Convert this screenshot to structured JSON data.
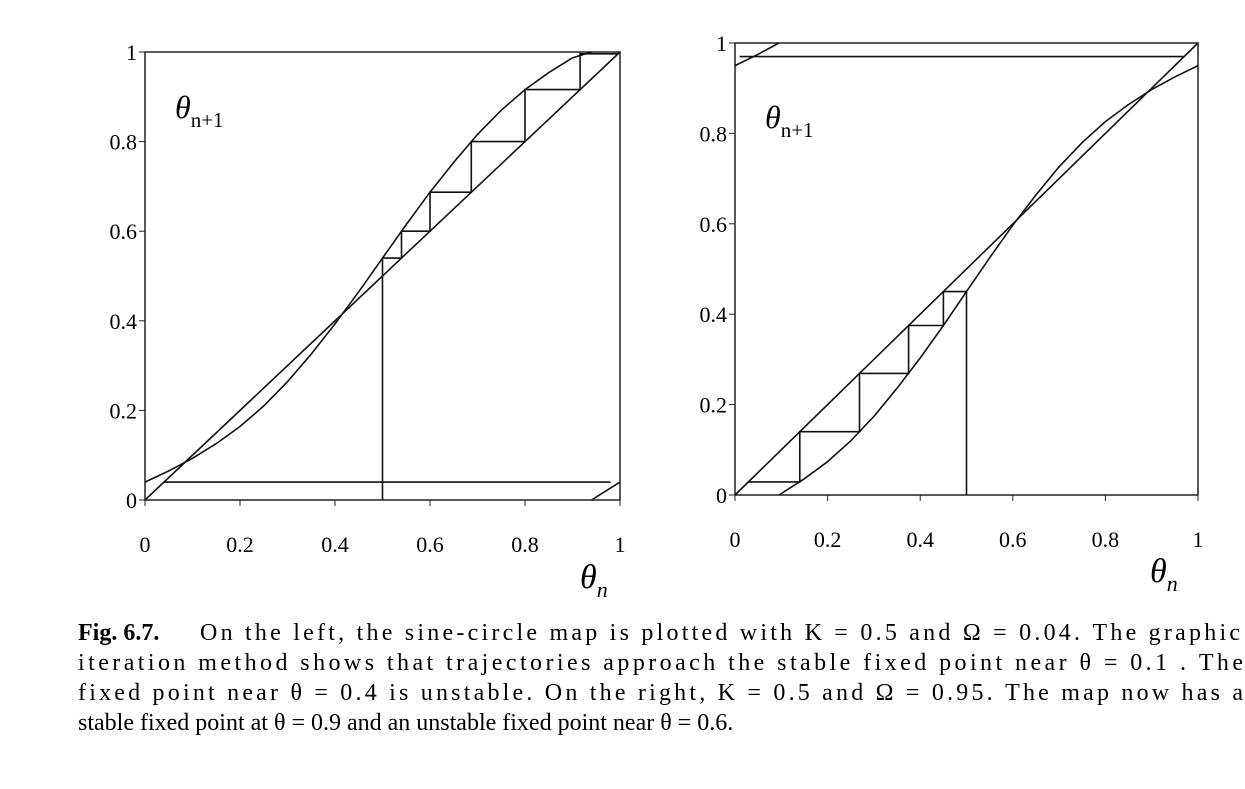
{
  "chart_data": [
    {
      "type": "line",
      "xlim": [
        0,
        1
      ],
      "ylim": [
        0,
        1
      ],
      "xticks": [
        0,
        0.2,
        0.4,
        0.6,
        0.8,
        1
      ],
      "yticks": [
        0,
        0.2,
        0.4,
        0.6,
        0.8,
        1
      ],
      "xlabel": "θ",
      "xlabel_sub": "n",
      "ylabel": "θ",
      "ylabel_sub": "n+1",
      "color": "#111111",
      "series": [
        {
          "x": [
            0,
            0.05,
            0.1,
            0.15,
            0.2,
            0.25,
            0.3,
            0.35,
            0.4,
            0.45,
            0.5,
            0.55,
            0.6,
            0.65,
            0.7,
            0.75,
            0.8,
            0.85,
            0.9,
            0.94
          ],
          "values": [
            0.04,
            0.065,
            0.093,
            0.126,
            0.164,
            0.21,
            0.264,
            0.326,
            0.393,
            0.465,
            0.54,
            0.615,
            0.687,
            0.754,
            0.816,
            0.87,
            0.916,
            0.954,
            0.987,
            1
          ]
        },
        {
          "x": [
            0.94,
            1
          ],
          "values": [
            0,
            0.04
          ]
        },
        {
          "x": [
            0,
            1
          ],
          "values": [
            0,
            1
          ]
        },
        {
          "x": [
            0.5,
            0.5,
            0.54,
            0.54,
            0.6,
            0.6,
            0.687,
            0.687,
            0.8,
            0.8,
            0.916,
            0.916,
            0.996
          ],
          "values": [
            0,
            0.54,
            0.54,
            0.6,
            0.6,
            0.687,
            0.687,
            0.8,
            0.8,
            0.916,
            0.916,
            0.996,
            0.996
          ]
        },
        {
          "x": [
            0.04,
            0.98
          ],
          "values": [
            0.04,
            0.04
          ]
        }
      ]
    },
    {
      "type": "line",
      "xlim": [
        0,
        1
      ],
      "ylim": [
        0,
        1
      ],
      "xticks": [
        0,
        0.2,
        0.4,
        0.6,
        0.8,
        1
      ],
      "yticks": [
        0,
        0.2,
        0.4,
        0.6,
        0.8,
        1
      ],
      "xlabel": "θ",
      "xlabel_sub": "n",
      "ylabel": "θ",
      "ylabel_sub": "n+1",
      "color": "#111111",
      "series": [
        {
          "x": [
            0,
            0.05,
            0.095
          ],
          "values": [
            0.95,
            0.975,
            1
          ]
        },
        {
          "x": [
            0.095,
            0.15,
            0.2,
            0.25,
            0.3,
            0.35,
            0.4,
            0.45,
            0.5,
            0.55,
            0.6,
            0.65,
            0.7,
            0.75,
            0.8,
            0.85,
            0.9,
            0.95,
            1
          ],
          "values": [
            0,
            0.036,
            0.074,
            0.12,
            0.174,
            0.236,
            0.303,
            0.375,
            0.45,
            0.525,
            0.597,
            0.664,
            0.726,
            0.78,
            0.826,
            0.864,
            0.897,
            0.925,
            0.95
          ]
        },
        {
          "x": [
            0,
            1
          ],
          "values": [
            0,
            1
          ]
        },
        {
          "x": [
            0.5,
            0.5,
            0.45,
            0.45,
            0.375,
            0.375,
            0.269,
            0.269,
            0.14,
            0.14,
            0.029
          ],
          "values": [
            0,
            0.45,
            0.45,
            0.375,
            0.375,
            0.269,
            0.269,
            0.14,
            0.14,
            0.029,
            0.029
          ]
        },
        {
          "x": [
            0.01,
            0.97
          ],
          "values": [
            0.97,
            0.97
          ]
        }
      ]
    }
  ],
  "caption_label": "Fig. 6.7.",
  "caption": [
    "On the left, the sine-circle map is plotted with K = 0.5 and Ω = 0.04.  The graphic",
    "iteration method shows that trajectories approach the stable fixed point near θ = 0.1 .  The",
    "fixed point near θ = 0.4 is unstable.  On the right, K = 0.5 and Ω = 0.95.  The map now has a",
    "stable fixed point at θ = 0.9 and an unstable fixed point near θ = 0.6."
  ]
}
